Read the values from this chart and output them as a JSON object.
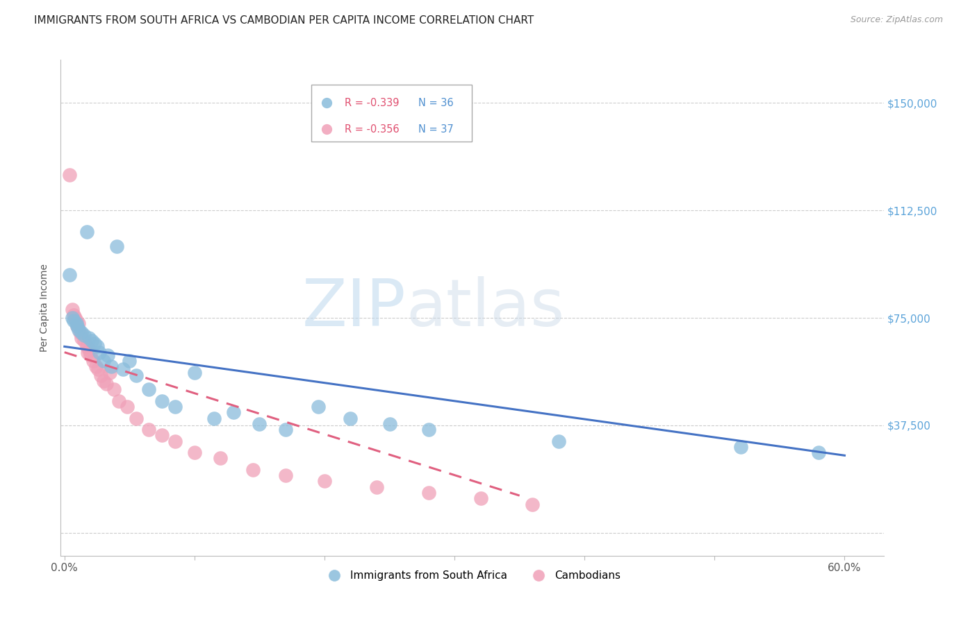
{
  "title": "IMMIGRANTS FROM SOUTH AFRICA VS CAMBODIAN PER CAPITA INCOME CORRELATION CHART",
  "source": "Source: ZipAtlas.com",
  "ylabel": "Per Capita Income",
  "yticks": [
    0,
    37500,
    75000,
    112500,
    150000
  ],
  "ytick_labels": [
    "",
    "$37,500",
    "$75,000",
    "$112,500",
    "$150,000"
  ],
  "ylim": [
    -8000,
    165000
  ],
  "xlim": [
    -0.003,
    0.63
  ],
  "watermark_zip": "ZIP",
  "watermark_atlas": "atlas",
  "legend_blue_r": "R = -0.339",
  "legend_blue_n": "N = 36",
  "legend_pink_r": "R = -0.356",
  "legend_pink_n": "N = 37",
  "legend_blue_label": "Immigrants from South Africa",
  "legend_pink_label": "Cambodians",
  "blue_color": "#8ABCDB",
  "pink_color": "#F0A0B8",
  "line_blue": "#4472C4",
  "line_pink": "#E06080",
  "blue_scatter_x": [
    0.004,
    0.006,
    0.007,
    0.009,
    0.01,
    0.011,
    0.013,
    0.015,
    0.017,
    0.019,
    0.021,
    0.023,
    0.025,
    0.027,
    0.03,
    0.033,
    0.036,
    0.04,
    0.045,
    0.05,
    0.055,
    0.065,
    0.075,
    0.085,
    0.1,
    0.115,
    0.13,
    0.15,
    0.17,
    0.195,
    0.22,
    0.25,
    0.28,
    0.38,
    0.52,
    0.58
  ],
  "blue_scatter_y": [
    90000,
    75000,
    74000,
    73000,
    72000,
    71000,
    70000,
    69000,
    105000,
    68000,
    67000,
    66000,
    65000,
    63000,
    60000,
    62000,
    58000,
    100000,
    57000,
    60000,
    55000,
    50000,
    46000,
    44000,
    56000,
    40000,
    42000,
    38000,
    36000,
    44000,
    40000,
    38000,
    36000,
    32000,
    30000,
    28000
  ],
  "pink_scatter_x": [
    0.004,
    0.006,
    0.007,
    0.008,
    0.009,
    0.01,
    0.011,
    0.012,
    0.013,
    0.015,
    0.017,
    0.018,
    0.019,
    0.02,
    0.022,
    0.024,
    0.026,
    0.028,
    0.03,
    0.032,
    0.035,
    0.038,
    0.042,
    0.048,
    0.055,
    0.065,
    0.075,
    0.085,
    0.1,
    0.12,
    0.145,
    0.17,
    0.2,
    0.24,
    0.28,
    0.32,
    0.36
  ],
  "pink_scatter_y": [
    125000,
    78000,
    76000,
    75000,
    74000,
    72000,
    73000,
    70000,
    68000,
    67000,
    65000,
    63000,
    64000,
    62000,
    60000,
    58000,
    57000,
    55000,
    53000,
    52000,
    56000,
    50000,
    46000,
    44000,
    40000,
    36000,
    34000,
    32000,
    28000,
    26000,
    22000,
    20000,
    18000,
    16000,
    14000,
    12000,
    10000
  ],
  "blue_line_x": [
    0.0,
    0.6
  ],
  "blue_line_y": [
    65000,
    27000
  ],
  "pink_line_x": [
    0.0,
    0.35
  ],
  "pink_line_y": [
    63000,
    13000
  ],
  "title_fontsize": 11,
  "axis_label_fontsize": 10,
  "tick_label_color": "#5BA3D9",
  "tick_label_fontsize": 11,
  "scatter_size": 220,
  "background_color": "#ffffff",
  "grid_color": "#cccccc",
  "legend_r_color": "#E05070",
  "legend_n_color": "#5090D0"
}
